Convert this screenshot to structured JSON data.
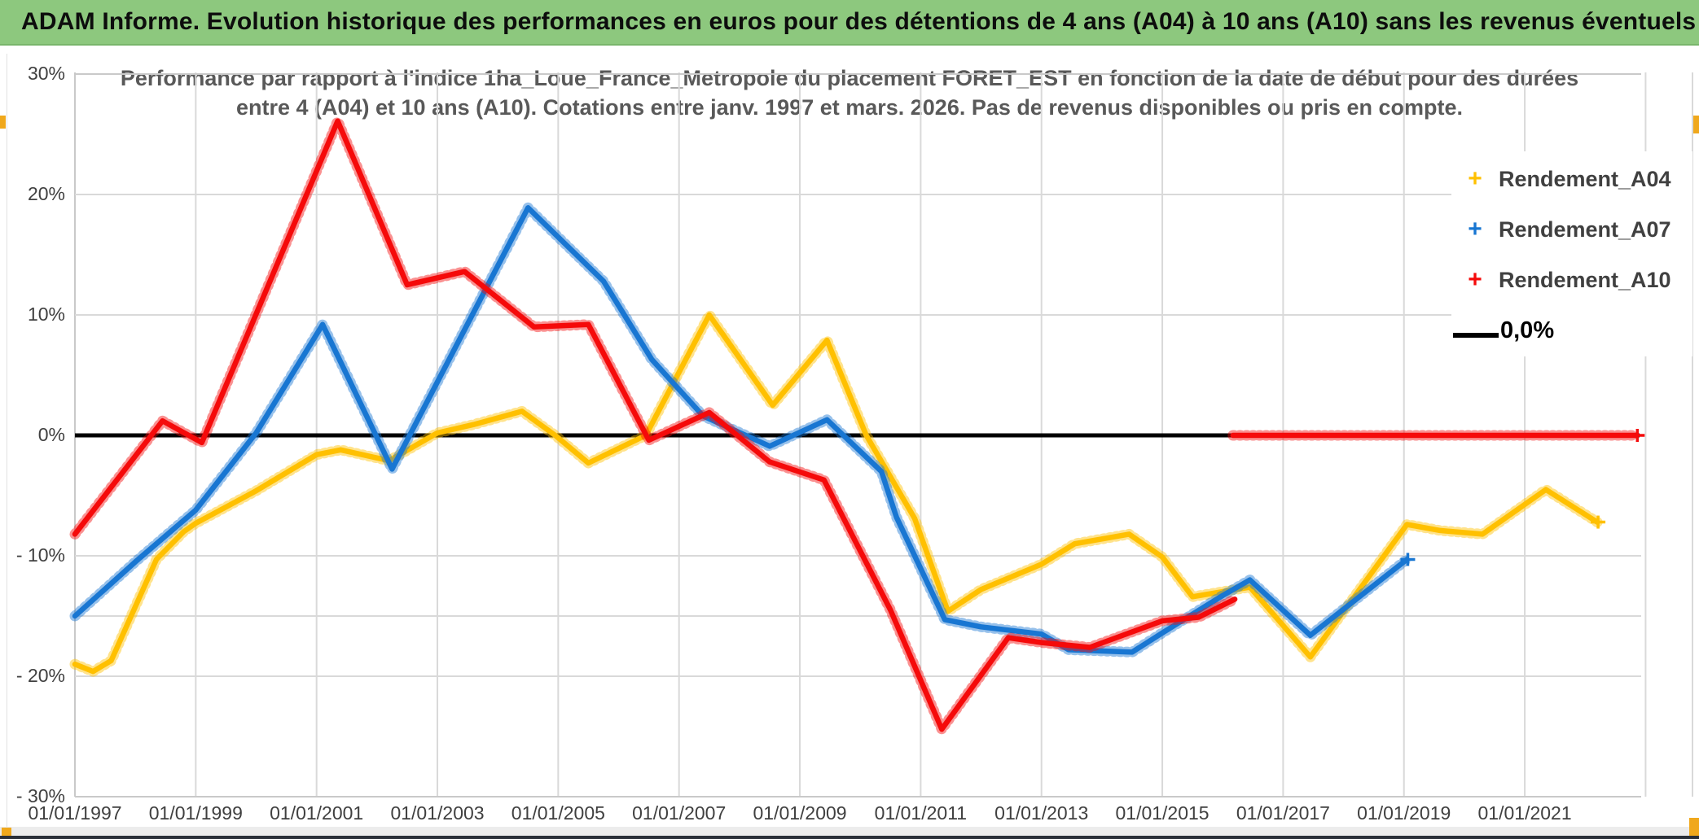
{
  "title_bar": {
    "text": "ADAM Informe. Evolution historique des performances en euros pour des détentions de 4 ans (A04) à 10 ans (A10) sans les revenus éventuels"
  },
  "subtitle": {
    "line1": "Performance par rapport à l'indice 1ha_Loue_France_Metropole  du placement FORET_EST en fonction de la date de début pour des durées",
    "line2": "entre 4 (A04) et 10 ans (A10). Cotations entre janv. 1997 et mars. 2026. Pas de revenus disponibles ou pris en compte."
  },
  "legend": {
    "items": [
      {
        "label": "Rendement_A04",
        "marker": "+",
        "color": "#FFC000"
      },
      {
        "label": "Rendement_A07",
        "marker": "+",
        "color": "#1876D2"
      },
      {
        "label": "Rendement_A10",
        "marker": "+",
        "color": "#F50A0A"
      },
      {
        "label": "0,0%",
        "marker": "line",
        "color": "#000000"
      }
    ]
  },
  "chart_data": {
    "type": "line",
    "title": "Performance par rapport à l'indice 1ha_Loue_France_Metropole du placement FORET_EST",
    "xlabel": "",
    "ylabel": "",
    "grid": "on",
    "legend_position": "top-right",
    "x_range_years": [
      1997.0,
      2023.8
    ],
    "ylim_pct": [
      -30,
      30
    ],
    "h_gridlines_pct": [
      30,
      20,
      10,
      -10,
      -15,
      -20,
      -30
    ],
    "x_ticks": [
      {
        "year": 1997,
        "label": "01/01/1997"
      },
      {
        "year": 1999,
        "label": "01/01/1999"
      },
      {
        "year": 2001,
        "label": "01/01/2001"
      },
      {
        "year": 2003,
        "label": "01/01/2003"
      },
      {
        "year": 2005,
        "label": "01/01/2005"
      },
      {
        "year": 2007,
        "label": "01/01/2007"
      },
      {
        "year": 2009,
        "label": "01/01/2009"
      },
      {
        "year": 2011,
        "label": "01/01/2011"
      },
      {
        "year": 2013,
        "label": "01/01/2013"
      },
      {
        "year": 2015,
        "label": "01/01/2015"
      },
      {
        "year": 2017,
        "label": "01/01/2017"
      },
      {
        "year": 2019,
        "label": "01/01/2019"
      },
      {
        "year": 2021,
        "label": "01/01/2021"
      }
    ],
    "y_ticks": [
      {
        "value": 30,
        "label": "30%"
      },
      {
        "value": 20,
        "label": "20%"
      },
      {
        "value": 10,
        "label": "10%"
      },
      {
        "value": 0,
        "label": "0%"
      },
      {
        "value": -10,
        "label": "- 10%"
      },
      {
        "value": -20,
        "label": "- 20%"
      },
      {
        "value": -30,
        "label": "- 30%"
      }
    ],
    "zero_line": {
      "label": "0,0%",
      "value": 0,
      "from_year": 1997.0,
      "to_year": 2022.9,
      "color": "#000000"
    },
    "series": [
      {
        "name": "Rendement_A04",
        "color": "#FFC000",
        "end_marker": true,
        "points": [
          [
            1997.0,
            -19.0
          ],
          [
            1997.3,
            -19.6
          ],
          [
            1997.6,
            -18.7
          ],
          [
            1998.35,
            -10.3
          ],
          [
            1998.8,
            -8.0
          ],
          [
            1999.0,
            -7.3
          ],
          [
            2000.0,
            -4.6
          ],
          [
            2001.0,
            -1.6
          ],
          [
            2001.4,
            -1.2
          ],
          [
            2002.2,
            -2.1
          ],
          [
            2003.0,
            0.2
          ],
          [
            2003.6,
            0.9
          ],
          [
            2004.4,
            2.0
          ],
          [
            2004.95,
            0.0
          ],
          [
            2005.5,
            -2.3
          ],
          [
            2006.45,
            0.0
          ],
          [
            2007.5,
            10.0
          ],
          [
            2008.55,
            2.5
          ],
          [
            2009.45,
            7.9
          ],
          [
            2010.1,
            0.0
          ],
          [
            2010.9,
            -6.9
          ],
          [
            2011.45,
            -14.6
          ],
          [
            2012.0,
            -12.8
          ],
          [
            2013.0,
            -10.7
          ],
          [
            2013.55,
            -9.0
          ],
          [
            2014.45,
            -8.2
          ],
          [
            2015.0,
            -10.1
          ],
          [
            2015.5,
            -13.4
          ],
          [
            2016.45,
            -12.6
          ],
          [
            2017.45,
            -18.4
          ],
          [
            2019.05,
            -7.4
          ],
          [
            2019.6,
            -7.9
          ],
          [
            2020.3,
            -8.2
          ],
          [
            2021.35,
            -4.5
          ],
          [
            2022.2,
            -7.2
          ]
        ]
      },
      {
        "name": "Rendement_A07",
        "color": "#1876D2",
        "end_marker": true,
        "points": [
          [
            1997.0,
            -15.0
          ],
          [
            1998.0,
            -10.5
          ],
          [
            1999.0,
            -6.2
          ],
          [
            2000.0,
            0.2
          ],
          [
            2001.1,
            9.2
          ],
          [
            2002.25,
            -2.8
          ],
          [
            2004.5,
            18.9
          ],
          [
            2005.75,
            12.8
          ],
          [
            2006.55,
            6.3
          ],
          [
            2007.4,
            1.6
          ],
          [
            2008.5,
            -0.9
          ],
          [
            2009.45,
            1.3
          ],
          [
            2010.35,
            -3.0
          ],
          [
            2010.6,
            -6.8
          ],
          [
            2011.4,
            -15.3
          ],
          [
            2012.0,
            -15.9
          ],
          [
            2013.0,
            -16.5
          ],
          [
            2013.45,
            -17.8
          ],
          [
            2014.5,
            -18.0
          ],
          [
            2015.0,
            -16.4
          ],
          [
            2016.0,
            -13.3
          ],
          [
            2016.45,
            -12.0
          ],
          [
            2017.45,
            -16.6
          ],
          [
            2019.05,
            -10.3
          ]
        ]
      },
      {
        "name": "Rendement_A10",
        "color": "#F50A0A",
        "end_marker": false,
        "points": [
          [
            1997.0,
            -8.2
          ],
          [
            1998.45,
            1.2
          ],
          [
            1999.1,
            -0.6
          ],
          [
            2001.35,
            26.1
          ],
          [
            2002.5,
            12.5
          ],
          [
            2003.45,
            13.6
          ],
          [
            2004.6,
            9.0
          ],
          [
            2005.5,
            9.2
          ],
          [
            2006.5,
            -0.4
          ],
          [
            2007.5,
            1.9
          ],
          [
            2008.5,
            -2.2
          ],
          [
            2009.4,
            -3.7
          ],
          [
            2010.5,
            -14.5
          ],
          [
            2011.35,
            -24.4
          ],
          [
            2012.45,
            -16.8
          ],
          [
            2013.0,
            -17.2
          ],
          [
            2013.8,
            -17.6
          ],
          [
            2015.0,
            -15.4
          ],
          [
            2015.6,
            -15.1
          ],
          [
            2016.2,
            -13.6
          ]
        ]
      },
      {
        "name": "Rendement_A10_zero_segment",
        "color": "#F50A0A",
        "end_marker": true,
        "points": [
          [
            2016.17,
            0.0
          ],
          [
            2022.85,
            0.0
          ]
        ]
      }
    ]
  }
}
